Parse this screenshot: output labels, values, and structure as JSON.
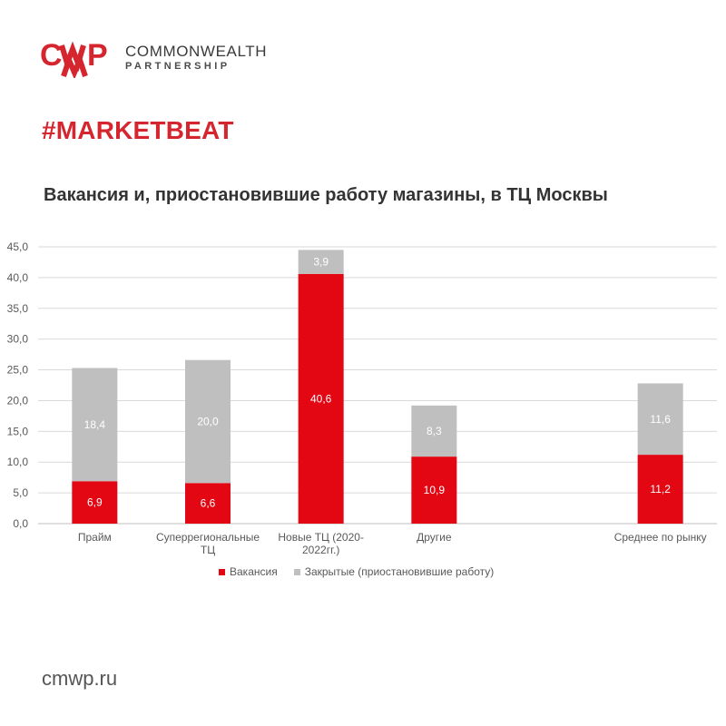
{
  "brand": {
    "mark": "CMWP",
    "line1": "COMMONWEALTH",
    "line2": "PARTNERSHIP",
    "accent_color": "#d5262f"
  },
  "hashtag": "#MARKETBEAT",
  "footer": {
    "url": "cmwp.ru"
  },
  "chart_data": {
    "type": "bar",
    "stacked": true,
    "title": "Вакансия и, приостановившие работу магазины, в ТЦ Москвы",
    "xlabel": "",
    "ylabel": "",
    "ylim": [
      0,
      45
    ],
    "yticks": [
      "0,0",
      "5,0",
      "10,0",
      "15,0",
      "20,0",
      "25,0",
      "30,0",
      "35,0",
      "40,0",
      "45,0"
    ],
    "grid": true,
    "legend_position": "bottom",
    "categories": [
      [
        "Прайм"
      ],
      [
        "Суперрегиональные",
        "ТЦ"
      ],
      [
        "Новые ТЦ (2020-",
        "2022гг.)"
      ],
      [
        "Другие"
      ],
      [
        ""
      ],
      [
        "Среднее по рынку"
      ]
    ],
    "series": [
      {
        "name": "Вакансия",
        "color": "#e30613",
        "values": [
          6.9,
          6.6,
          40.6,
          10.9,
          null,
          11.2
        ],
        "labels": [
          "6,9",
          "6,6",
          "40,6",
          "10,9",
          "",
          "11,2"
        ]
      },
      {
        "name": "Закрытые (приостановившие работу)",
        "color": "#bfbfbf",
        "values": [
          18.4,
          20.0,
          3.9,
          8.3,
          null,
          11.6
        ],
        "labels": [
          "18,4",
          "20,0",
          "3,9",
          "8,3",
          "",
          "11,6"
        ]
      }
    ]
  }
}
